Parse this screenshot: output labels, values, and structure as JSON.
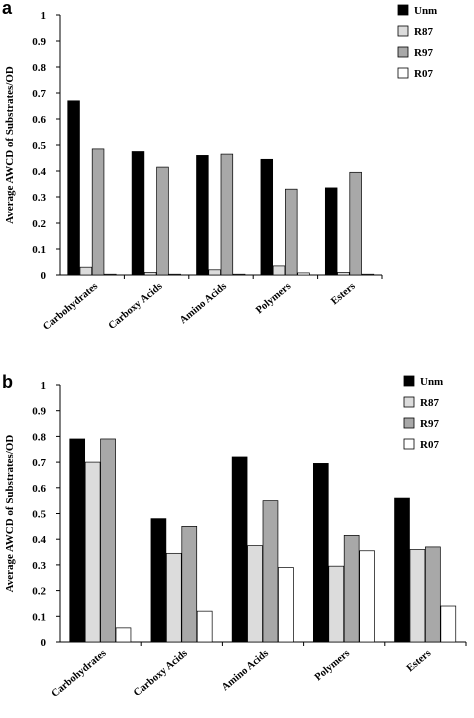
{
  "chart_data": [
    {
      "type": "bar",
      "panel": "a",
      "ylabel": "Average AWCD of Substrates/OD",
      "ylim": [
        0,
        1
      ],
      "yticks": [
        "0",
        "0.1",
        "0.2",
        "0.3",
        "0.4",
        "0.5",
        "0.6",
        "0.7",
        "0.8",
        "0.9",
        "1"
      ],
      "categories": [
        "Carbohydrates",
        "Carboxy Acids",
        "Amino Acids",
        "Polymers",
        "Esters"
      ],
      "legend_position": "top-right",
      "grid": false,
      "series": [
        {
          "name": "Unm",
          "color": "#000000",
          "values": [
            0.67,
            0.475,
            0.46,
            0.445,
            0.335
          ]
        },
        {
          "name": "R87",
          "color": "#dcdcdc",
          "values": [
            0.03,
            0.01,
            0.02,
            0.035,
            0.01
          ]
        },
        {
          "name": "R97",
          "color": "#a8a8a8",
          "values": [
            0.485,
            0.415,
            0.465,
            0.33,
            0.395
          ]
        },
        {
          "name": "R07",
          "color": "#ffffff",
          "values": [
            0.003,
            0.003,
            0.003,
            0.008,
            0.003
          ]
        }
      ]
    },
    {
      "type": "bar",
      "panel": "b",
      "ylabel": "Average AWCD of Substrates/OD",
      "ylim": [
        0,
        1
      ],
      "yticks": [
        "0",
        "0.1",
        "0.2",
        "0.3",
        "0.4",
        "0.5",
        "0.6",
        "0.7",
        "0.8",
        "0.9",
        "1"
      ],
      "categories": [
        "Carbohydrates",
        "Carboxy Acids",
        "Amino Acids",
        "Polymers",
        "Esters"
      ],
      "legend_position": "top-right",
      "grid": false,
      "series": [
        {
          "name": "Unm",
          "color": "#000000",
          "values": [
            0.79,
            0.48,
            0.72,
            0.695,
            0.56
          ]
        },
        {
          "name": "R87",
          "color": "#dcdcdc",
          "values": [
            0.7,
            0.345,
            0.375,
            0.295,
            0.36
          ]
        },
        {
          "name": "R97",
          "color": "#a8a8a8",
          "values": [
            0.79,
            0.45,
            0.55,
            0.415,
            0.37
          ]
        },
        {
          "name": "R07",
          "color": "#ffffff",
          "values": [
            0.055,
            0.12,
            0.29,
            0.355,
            0.14
          ]
        }
      ]
    }
  ]
}
